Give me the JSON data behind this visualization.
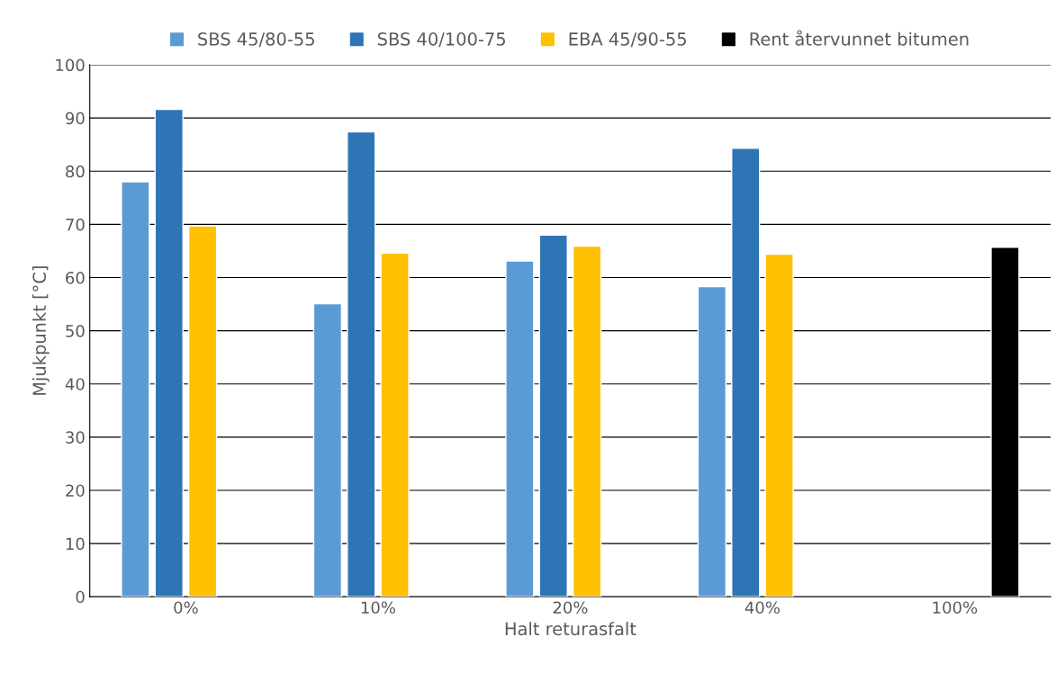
{
  "chart_data": {
    "type": "bar",
    "xlabel": "Halt returasfalt",
    "ylabel": "Mjukpunkt [°C]",
    "categories": [
      "0%",
      "10%",
      "20%",
      "40%",
      "100%"
    ],
    "series": [
      {
        "name": "SBS 45/80-55",
        "color": "#5b9bd5",
        "values": [
          78.0,
          55.1,
          63.1,
          58.3,
          null
        ]
      },
      {
        "name": "SBS 40/100-75",
        "color": "#2e75b6",
        "values": [
          91.6,
          87.4,
          68.0,
          84.3,
          null
        ]
      },
      {
        "name": "EBA 45/90-55",
        "color": "#ffc000",
        "values": [
          69.7,
          64.6,
          65.9,
          64.4,
          null
        ]
      },
      {
        "name": "Rent återvunnet bitumen",
        "color": "#000000",
        "values": [
          null,
          null,
          null,
          null,
          65.7
        ]
      }
    ],
    "ylim": [
      0,
      100
    ],
    "yticks": [
      0,
      10,
      20,
      30,
      40,
      50,
      60,
      70,
      80,
      90,
      100
    ],
    "grid": "y",
    "legend": "top"
  }
}
